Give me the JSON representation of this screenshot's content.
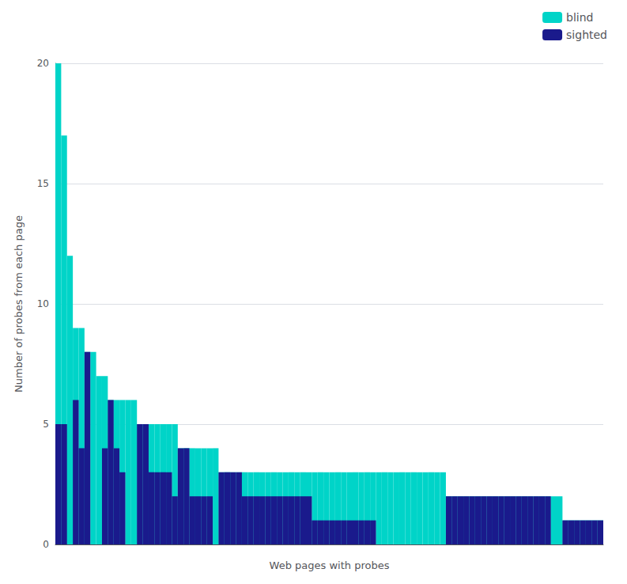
{
  "chart_data": {
    "type": "bar",
    "xlabel": "Web pages with probes",
    "ylabel": "Number of probes from each page",
    "series": [
      {
        "name": "blind",
        "color": "#00d4c8",
        "values": [
          20,
          17,
          12,
          9,
          9,
          8,
          8,
          7,
          7,
          6,
          6,
          6,
          6,
          6,
          5,
          5,
          5,
          5,
          5,
          5,
          5,
          4,
          4,
          4,
          4,
          4,
          4,
          4,
          3,
          3,
          3,
          3,
          3,
          3,
          3,
          3,
          3,
          3,
          3,
          3,
          3,
          3,
          3,
          3,
          3,
          3,
          3,
          3,
          3,
          3,
          3,
          3,
          3,
          3,
          3,
          3,
          3,
          3,
          3,
          3,
          3,
          3,
          3,
          3,
          3,
          3,
          3,
          2,
          2,
          2,
          2,
          2,
          2,
          2,
          2,
          2,
          2,
          2,
          2,
          2,
          2,
          2,
          2,
          2,
          2,
          2,
          2,
          1,
          1,
          1,
          1,
          1,
          1,
          1
        ]
      },
      {
        "name": "sighted",
        "color": "#1a1a8c",
        "values": [
          5,
          5,
          0,
          6,
          4,
          8,
          0,
          0,
          4,
          6,
          4,
          3,
          0,
          0,
          5,
          5,
          3,
          3,
          3,
          3,
          2,
          4,
          4,
          2,
          2,
          2,
          2,
          0,
          3,
          3,
          3,
          3,
          2,
          2,
          2,
          2,
          2,
          2,
          2,
          2,
          2,
          2,
          2,
          2,
          1,
          1,
          1,
          1,
          1,
          1,
          1,
          1,
          1,
          1,
          1,
          0,
          0,
          0,
          0,
          0,
          0,
          0,
          0,
          0,
          0,
          0,
          0,
          2,
          2,
          2,
          2,
          2,
          2,
          2,
          2,
          2,
          2,
          2,
          2,
          2,
          2,
          2,
          2,
          2,
          2,
          0,
          0,
          1,
          1,
          1,
          1,
          1,
          1,
          1
        ]
      }
    ],
    "ylim": [
      0,
      20
    ],
    "yticks": [
      0,
      5,
      10,
      15,
      20
    ],
    "grid": true,
    "legend": "upper right",
    "tick_labels": "y"
  }
}
